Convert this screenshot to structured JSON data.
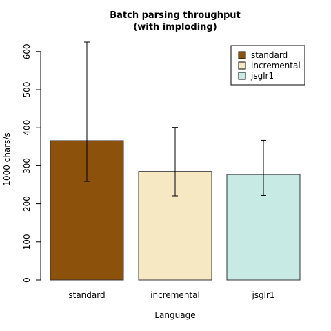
{
  "chart_data": {
    "type": "bar",
    "title": "Batch parsing throughput",
    "subtitle": "(with imploding)",
    "xlabel": "Language",
    "ylabel": "1000 chars/s",
    "ylim": [
      0,
      625
    ],
    "yticks": [
      0,
      100,
      200,
      300,
      400,
      500,
      600
    ],
    "yticks_labels": [
      "0",
      "100",
      "200",
      "300",
      "400",
      "500",
      "600"
    ],
    "categories": [
      "standard",
      "incremental",
      "jsglr1"
    ],
    "values": [
      366,
      285,
      277
    ],
    "error_low": [
      259,
      221,
      222
    ],
    "error_high": [
      625,
      401,
      367
    ],
    "colors": [
      "#8C510A",
      "#F6E8C3",
      "#C7EAE5"
    ],
    "grid": false,
    "legend_position": "top-right",
    "legend": [
      "standard",
      "incremental",
      "jsglr1"
    ]
  }
}
